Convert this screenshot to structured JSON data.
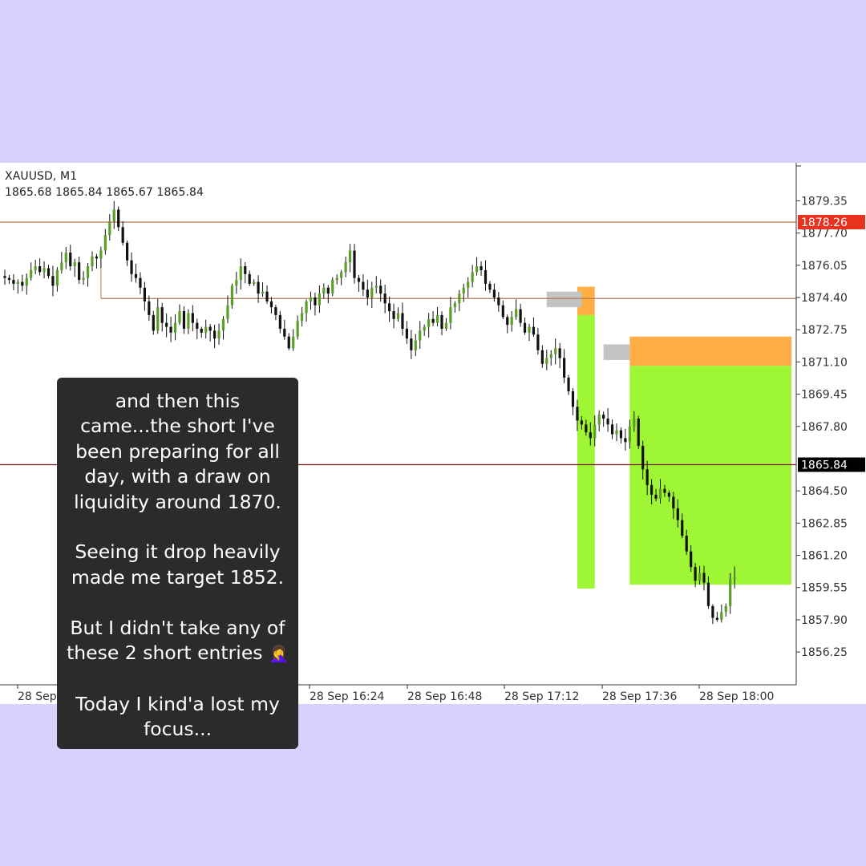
{
  "chart_data": {
    "type": "candlestick",
    "symbol": "XAUUSD, M1",
    "ohlc_readout": "1865.68 1865.84 1865.67 1865.84",
    "ylim": [
      1855.2,
      1880.0
    ],
    "y_ticks": [
      "1879.35",
      "1877.70",
      "1876.05",
      "1874.40",
      "1872.75",
      "1871.10",
      "1869.45",
      "1867.80",
      "1864.50",
      "1862.85",
      "1861.20",
      "1859.55",
      "1857.90",
      "1856.25"
    ],
    "x_ticks": [
      "28 Sep",
      "28 Sep 16:24",
      "28 Sep 16:48",
      "28 Sep 17:12",
      "28 Sep 17:36",
      "28 Sep 18:00"
    ],
    "price_labels": [
      {
        "value": 1878.26,
        "text": "1878.26",
        "color": "#e8321e"
      },
      {
        "value": 1865.84,
        "text": "1865.84",
        "color": "#000000"
      }
    ],
    "horizontal_lines": [
      {
        "value": 1878.26,
        "color": "#b07a56"
      },
      {
        "value": 1874.35,
        "color": "#b07a56",
        "from_bar": 22
      },
      {
        "value": 1865.84,
        "color": "#7a1c1c"
      }
    ],
    "candles_close": [
      1875.4,
      1875.3,
      1875.1,
      1875.2,
      1875.0,
      1875.4,
      1875.8,
      1876.0,
      1875.7,
      1875.9,
      1875.5,
      1875.0,
      1875.8,
      1876.2,
      1876.7,
      1876.0,
      1876.2,
      1875.3,
      1875.4,
      1876.0,
      1876.5,
      1876.4,
      1876.8,
      1877.6,
      1878.3,
      1878.9,
      1878.0,
      1877.2,
      1876.3,
      1875.6,
      1875.4,
      1874.9,
      1874.2,
      1873.5,
      1872.7,
      1873.9,
      1873.1,
      1872.9,
      1872.6,
      1873.1,
      1873.7,
      1872.8,
      1873.6,
      1873.1,
      1872.8,
      1872.6,
      1872.9,
      1872.7,
      1872.3,
      1872.7,
      1873.3,
      1874.0,
      1875.0,
      1875.3,
      1876.0,
      1875.6,
      1875.1,
      1875.2,
      1874.6,
      1874.7,
      1874.2,
      1873.9,
      1873.5,
      1872.8,
      1872.4,
      1871.8,
      1872.4,
      1873.2,
      1873.6,
      1874.2,
      1874.4,
      1874.0,
      1874.6,
      1874.9,
      1874.6,
      1875.3,
      1875.4,
      1875.7,
      1876.2,
      1876.8,
      1875.4,
      1875.2,
      1874.8,
      1874.4,
      1874.9,
      1875.0,
      1874.6,
      1874.1,
      1873.7,
      1873.3,
      1873.6,
      1872.8,
      1872.3,
      1871.7,
      1872.2,
      1872.7,
      1872.9,
      1873.3,
      1873.1,
      1873.5,
      1872.8,
      1873.1,
      1873.9,
      1874.1,
      1874.6,
      1874.9,
      1875.2,
      1875.7,
      1876.0,
      1875.8,
      1875.1,
      1874.8,
      1874.4,
      1874.0,
      1873.4,
      1873.0,
      1873.4,
      1873.8,
      1873.1,
      1872.6,
      1872.9,
      1872.5,
      1871.7,
      1871.0,
      1871.3,
      1871.5,
      1871.8,
      1871.3,
      1870.3,
      1869.6,
      1868.8,
      1868.1,
      1867.9,
      1867.5,
      1867.2,
      1867.9,
      1868.4,
      1868.2,
      1867.9,
      1867.4,
      1867.6,
      1867.2,
      1867.0,
      1867.8,
      1868.2,
      1866.8,
      1865.6,
      1864.8,
      1864.3,
      1864.1,
      1864.6,
      1864.4,
      1864.2,
      1863.6,
      1863.0,
      1862.2,
      1861.4,
      1860.6,
      1859.9,
      1860.3,
      1859.8,
      1858.6,
      1858.0,
      1857.9,
      1858.3,
      1858.6,
      1860.0,
      1860.1
    ]
  },
  "zones": [
    {
      "type": "stop",
      "from_bar": 131,
      "to_bar": 135,
      "top": 1874.95,
      "bottom": 1873.5,
      "color": "#ffad45"
    },
    {
      "type": "target",
      "from_bar": 131,
      "to_bar": 135,
      "top": 1873.5,
      "bottom": 1859.5,
      "color": "#9ef634"
    },
    {
      "type": "stop",
      "from_bar": 143,
      "to_bar": 180,
      "top": 1872.4,
      "bottom": 1870.9,
      "color": "#ffad45"
    },
    {
      "type": "target",
      "from_bar": 143,
      "to_bar": 180,
      "top": 1870.9,
      "bottom": 1859.7,
      "color": "#9ef634"
    },
    {
      "type": "entry",
      "from_bar": 124,
      "to_bar": 132,
      "top": 1874.7,
      "bottom": 1873.9,
      "color": "#c3c3c3"
    },
    {
      "type": "entry",
      "from_bar": 137,
      "to_bar": 143,
      "top": 1872.0,
      "bottom": 1871.2,
      "color": "#c3c3c3"
    }
  ],
  "caption": {
    "p1": "and then this came...the short I've been preparing for all day, with a draw on liquidity around 1870.",
    "p2": "Seeing it drop heavily made me target 1852.",
    "p3": "But I didn't take any of these 2 short entries",
    "p3_emoji": "🤦‍♀️",
    "p4": "Today I kind'a lost my focus..."
  }
}
